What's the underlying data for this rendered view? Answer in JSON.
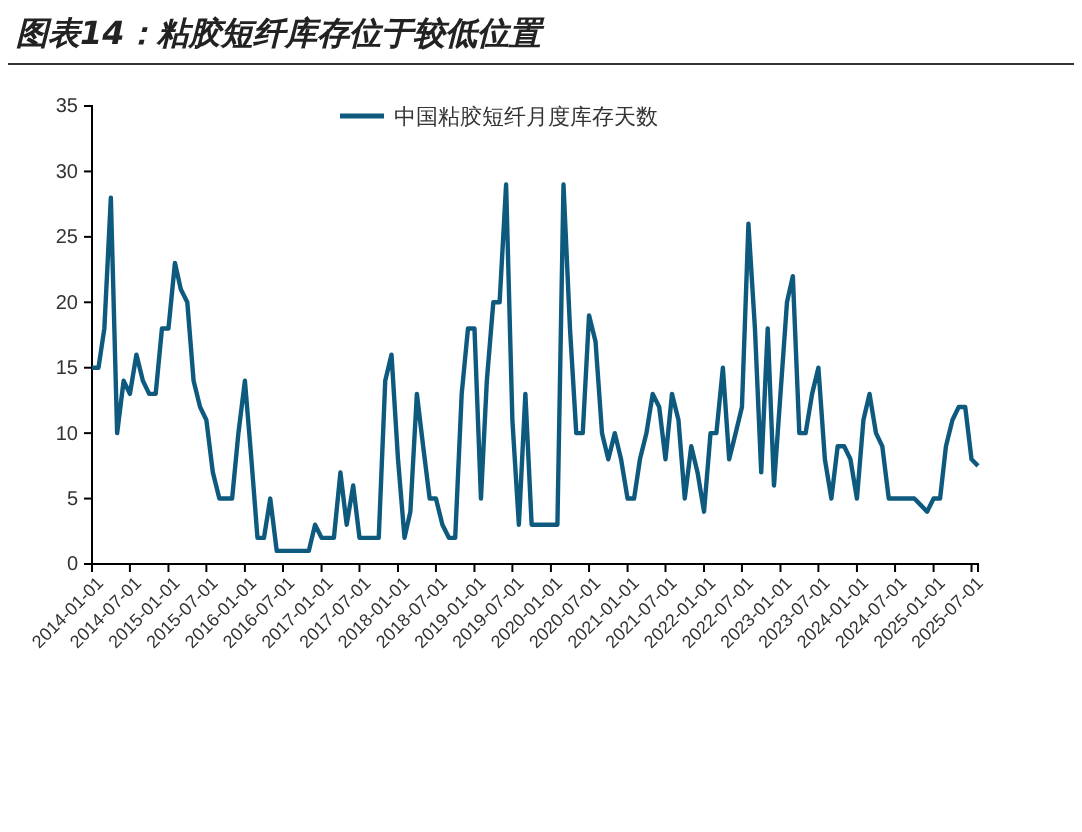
{
  "chart_data": {
    "type": "line",
    "title": "图表14：粘胶短纤库存位于较低位置",
    "x": [
      "2014-01",
      "2014-02",
      "2014-03",
      "2014-04",
      "2014-05",
      "2014-06",
      "2014-07",
      "2014-08",
      "2014-09",
      "2014-10",
      "2014-11",
      "2014-12",
      "2015-01",
      "2015-02",
      "2015-03",
      "2015-04",
      "2015-05",
      "2015-06",
      "2015-07",
      "2015-08",
      "2015-09",
      "2015-10",
      "2015-11",
      "2015-12",
      "2016-01",
      "2016-02",
      "2016-03",
      "2016-04",
      "2016-05",
      "2016-06",
      "2016-07",
      "2016-08",
      "2016-09",
      "2016-10",
      "2016-11",
      "2016-12",
      "2017-01",
      "2017-02",
      "2017-03",
      "2017-04",
      "2017-05",
      "2017-06",
      "2017-07",
      "2017-08",
      "2017-09",
      "2017-10",
      "2017-11",
      "2017-12",
      "2018-01",
      "2018-02",
      "2018-03",
      "2018-04",
      "2018-05",
      "2018-06",
      "2018-07",
      "2018-08",
      "2018-09",
      "2018-10",
      "2018-11",
      "2018-12",
      "2019-01",
      "2019-02",
      "2019-03",
      "2019-04",
      "2019-05",
      "2019-06",
      "2019-07",
      "2019-08",
      "2019-09",
      "2019-10",
      "2019-11",
      "2019-12",
      "2020-01",
      "2020-02",
      "2020-03",
      "2020-04",
      "2020-05",
      "2020-06",
      "2020-07",
      "2020-08",
      "2020-09",
      "2020-10",
      "2020-11",
      "2020-12",
      "2021-01",
      "2021-02",
      "2021-03",
      "2021-04",
      "2021-05",
      "2021-06",
      "2021-07",
      "2021-08",
      "2021-09",
      "2021-10",
      "2021-11",
      "2021-12",
      "2022-01",
      "2022-02",
      "2022-03",
      "2022-04",
      "2022-05",
      "2022-06",
      "2022-07",
      "2022-08",
      "2022-09",
      "2022-10",
      "2022-11",
      "2022-12",
      "2023-01",
      "2023-02",
      "2023-03",
      "2023-04",
      "2023-05",
      "2023-06",
      "2023-07",
      "2023-08",
      "2023-09",
      "2023-10",
      "2023-11",
      "2023-12",
      "2024-01",
      "2024-02",
      "2024-03",
      "2024-04",
      "2024-05",
      "2024-06",
      "2024-07",
      "2024-08",
      "2024-09",
      "2024-10",
      "2024-11",
      "2024-12",
      "2025-01",
      "2025-02",
      "2025-03",
      "2025-04",
      "2025-05",
      "2025-06",
      "2025-07",
      "2025-08"
    ],
    "series": [
      {
        "name": "中国粘胶短纤月度库存天数",
        "color": "#0e5a7e",
        "values": [
          15,
          15,
          18,
          28,
          10,
          14,
          13,
          16,
          14,
          13,
          13,
          18,
          18,
          23,
          21,
          20,
          14,
          12,
          11,
          7,
          5,
          5,
          5,
          10,
          14,
          8,
          2,
          2,
          5,
          1,
          1,
          1,
          1,
          1,
          1,
          3,
          2,
          2,
          2,
          7,
          3,
          6,
          2,
          2,
          2,
          2,
          14,
          16,
          8,
          2,
          4,
          13,
          9,
          5,
          5,
          3,
          2,
          2,
          13,
          18,
          18,
          5,
          14,
          20,
          20,
          29,
          11,
          3,
          13,
          3,
          3,
          3,
          3,
          3,
          29,
          18,
          10,
          10,
          19,
          17,
          10,
          8,
          10,
          8,
          5,
          5,
          8,
          10,
          13,
          12,
          8,
          13,
          11,
          5,
          9,
          7,
          4,
          10,
          10,
          15,
          8,
          10,
          12,
          26,
          18,
          7,
          18,
          6,
          13,
          20,
          22,
          10,
          10,
          13,
          15,
          8,
          5,
          9,
          9,
          8,
          5,
          11,
          13,
          10,
          9,
          5,
          5,
          5,
          5,
          5,
          4.5,
          4,
          5,
          5,
          9,
          11,
          12,
          12,
          8,
          7.5
        ]
      }
    ],
    "xlim": [
      "2014-01",
      "2025-08"
    ],
    "xticks": [
      "2014-01-01",
      "2014-07-01",
      "2015-01-01",
      "2015-07-01",
      "2016-01-01",
      "2016-07-01",
      "2017-01-01",
      "2017-07-01",
      "2018-01-01",
      "2018-07-01",
      "2019-01-01",
      "2019-07-01",
      "2020-01-01",
      "2020-07-01",
      "2021-01-01",
      "2021-07-01",
      "2022-01-01",
      "2022-07-01",
      "2023-01-01",
      "2023-07-01",
      "2024-01-01",
      "2024-07-01",
      "2025-01-01",
      "2025-07-01"
    ],
    "ylim": [
      0,
      35
    ],
    "yticks": [
      0,
      5,
      10,
      15,
      20,
      25,
      30,
      35
    ],
    "legend": "top",
    "grid": false,
    "line_style": "solid",
    "marker": "none"
  }
}
